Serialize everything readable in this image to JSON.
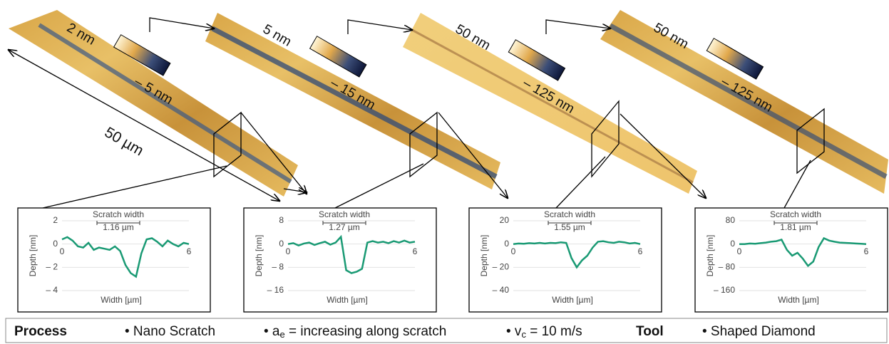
{
  "scans": [
    {
      "top": "2 nm",
      "bottom": "– 5 nm"
    },
    {
      "top": "5 nm",
      "bottom": "– 15 nm"
    },
    {
      "top": "50 nm",
      "bottom": "– 125 nm"
    },
    {
      "top": "50 nm",
      "bottom": "– 125 nm"
    }
  ],
  "scan_length": "50 µm",
  "chart_data": [
    {
      "type": "line",
      "annotation": "Scratch width",
      "width_label": "1.16 µm",
      "ylabel": "Depth [nm]",
      "xlabel": "Width [µm]",
      "color": "#1a9a74",
      "grid": true,
      "x": [
        0,
        0.25,
        0.5,
        0.75,
        1,
        1.25,
        1.5,
        1.75,
        2,
        2.25,
        2.5,
        2.75,
        3,
        3.25,
        3.5,
        3.75,
        4,
        4.25,
        4.5,
        4.75,
        5,
        5.25,
        5.5,
        5.75,
        6
      ],
      "values": [
        0.4,
        0.6,
        0.3,
        -0.2,
        -0.3,
        0.1,
        -0.5,
        -0.3,
        -0.4,
        -0.5,
        -0.2,
        -0.6,
        -1.8,
        -2.5,
        -2.8,
        -0.8,
        0.4,
        0.5,
        0.2,
        -0.2,
        0.3,
        0.0,
        -0.2,
        0.1,
        0.0
      ],
      "xlim": [
        0,
        6
      ],
      "xticks": [
        0,
        6
      ],
      "ylim": [
        -4,
        2
      ],
      "yticks": [
        2,
        0,
        {
          "value": -2,
          "label": "– 2"
        },
        {
          "value": -4,
          "label": "– 4"
        }
      ]
    },
    {
      "type": "line",
      "annotation": "Scratch width",
      "width_label": "1.27 µm",
      "ylabel": "Depth [nm]",
      "xlabel": "Width [µm]",
      "color": "#1a9a74",
      "grid": true,
      "x": [
        0,
        0.25,
        0.5,
        0.75,
        1,
        1.25,
        1.5,
        1.75,
        2,
        2.25,
        2.5,
        2.75,
        3,
        3.25,
        3.5,
        3.75,
        4,
        4.25,
        4.5,
        4.75,
        5,
        5.25,
        5.5,
        5.75,
        6
      ],
      "values": [
        0,
        0.3,
        -0.5,
        0.2,
        0.5,
        -0.3,
        0.3,
        0.8,
        -0.2,
        0.5,
        2.5,
        -9,
        -10,
        -9.5,
        -8.5,
        0.5,
        1,
        0.5,
        0.8,
        0.3,
        1,
        0.5,
        1.2,
        0.5,
        0.8
      ],
      "xlim": [
        0,
        6
      ],
      "xticks": [
        0,
        6
      ],
      "ylim": [
        -16,
        8
      ],
      "yticks": [
        8,
        0,
        {
          "value": -8,
          "label": "– 8"
        },
        {
          "value": -16,
          "label": "– 16"
        }
      ]
    },
    {
      "type": "line",
      "annotation": "Scratch width",
      "width_label": "1.55 µm",
      "ylabel": "Depth [nm]",
      "xlabel": "Width [µm]",
      "color": "#1a9a74",
      "grid": true,
      "x": [
        0,
        0.25,
        0.5,
        0.75,
        1,
        1.25,
        1.5,
        1.75,
        2,
        2.25,
        2.5,
        2.75,
        3,
        3.25,
        3.5,
        3.75,
        4,
        4.25,
        4.5,
        4.75,
        5,
        5.25,
        5.5,
        5.75,
        6
      ],
      "values": [
        0,
        0.5,
        0.2,
        0.8,
        0.5,
        1,
        0.5,
        1,
        0.8,
        1.5,
        1,
        -12,
        -20,
        -14,
        -10,
        -3,
        2,
        2.5,
        1.5,
        1,
        2,
        1.5,
        0.5,
        1,
        0
      ],
      "xlim": [
        0,
        6
      ],
      "xticks": [
        0,
        6
      ],
      "ylim": [
        -40,
        20
      ],
      "yticks": [
        20,
        0,
        {
          "value": -20,
          "label": "– 20"
        },
        {
          "value": -40,
          "label": "– 40"
        }
      ]
    },
    {
      "type": "line",
      "annotation": "Scratch width",
      "width_label": "1.81 µm",
      "ylabel": "Depth [nm]",
      "xlabel": "Width [µm]",
      "color": "#1a9a74",
      "grid": true,
      "x": [
        0,
        0.25,
        0.5,
        0.75,
        1,
        1.25,
        1.5,
        1.75,
        2,
        2.25,
        2.5,
        2.75,
        3,
        3.25,
        3.5,
        3.75,
        4,
        4.25,
        4.5,
        4.75,
        5,
        5.25,
        5.5,
        5.75,
        6
      ],
      "values": [
        0,
        0,
        2,
        1,
        3,
        5,
        8,
        10,
        15,
        -20,
        -40,
        -30,
        -50,
        -75,
        -60,
        -10,
        20,
        12,
        8,
        5,
        4,
        3,
        2,
        1,
        0
      ],
      "xlim": [
        0,
        6
      ],
      "xticks": [
        0,
        6
      ],
      "ylim": [
        -160,
        80
      ],
      "yticks": [
        80,
        0,
        {
          "value": -80,
          "label": "– 80"
        },
        {
          "value": -160,
          "label": "– 160"
        }
      ]
    }
  ],
  "footer": {
    "process": "Process",
    "items": [
      {
        "main": "• Nano Scratch"
      },
      {
        "main": "• a",
        "sub": "e",
        "rest": " = increasing along scratch"
      },
      {
        "main": "• v",
        "sub": "c",
        "rest": " = 10 m/s"
      }
    ],
    "tool": "Tool",
    "tool_item": "• Shaped Diamond"
  }
}
